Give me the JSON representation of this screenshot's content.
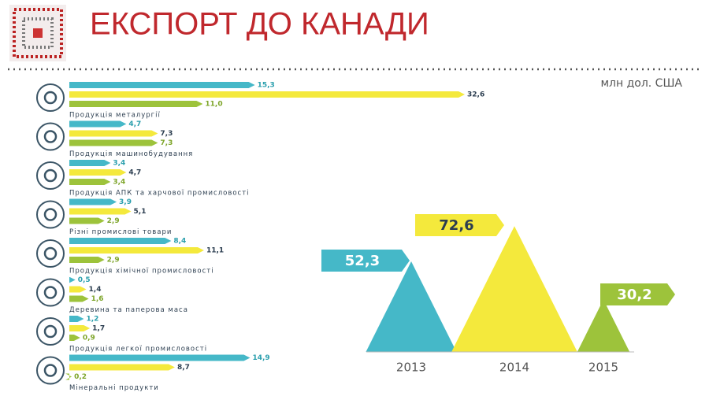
{
  "title": "ЕКСПОРТ ДО КАНАДИ",
  "chart_data": [
    {
      "type": "hbar",
      "subtitle": "млн дол. США",
      "categories": [
        "Продукція металургії",
        "Продукція машинобудування",
        "Продукція АПК та харчової промисловості",
        "Різні промислові товари",
        "Продукція хімічної промисловості",
        "Деревина та паперова маса",
        "Продукція легкої промисловості",
        "Мінеральні продукти"
      ],
      "series": [
        {
          "color": "#45b8c8",
          "values": [
            15.3,
            4.7,
            3.4,
            3.9,
            8.4,
            0.5,
            1.2,
            14.9
          ],
          "value_labels": [
            "15,3",
            "4,7",
            "3,4",
            "3,9",
            "8,4",
            "0,5",
            "1,2",
            "14,9"
          ]
        },
        {
          "color": "#f4e93c",
          "values": [
            32.6,
            7.3,
            4.7,
            5.1,
            11.1,
            1.4,
            1.7,
            8.7
          ],
          "value_labels": [
            "32,6",
            "7,3",
            "4,7",
            "5,1",
            "11,1",
            "1,4",
            "1,7",
            "8,7"
          ]
        },
        {
          "color": "#9dc33b",
          "values": [
            11.0,
            7.3,
            3.4,
            2.9,
            2.9,
            1.6,
            0.9,
            0.2
          ],
          "value_labels": [
            "11,0",
            "7,3",
            "3,4",
            "2,9",
            "2,9",
            "1,6",
            "0,9",
            "0,2"
          ]
        }
      ]
    },
    {
      "type": "triangle",
      "categories": [
        "2013",
        "2014",
        "2015"
      ],
      "values": [
        52.3,
        72.6,
        30.2
      ],
      "value_labels": [
        "52,3",
        "72,6",
        "30,2"
      ],
      "colors": [
        "#45b8c8",
        "#f4e93c",
        "#9dc33b"
      ]
    }
  ]
}
